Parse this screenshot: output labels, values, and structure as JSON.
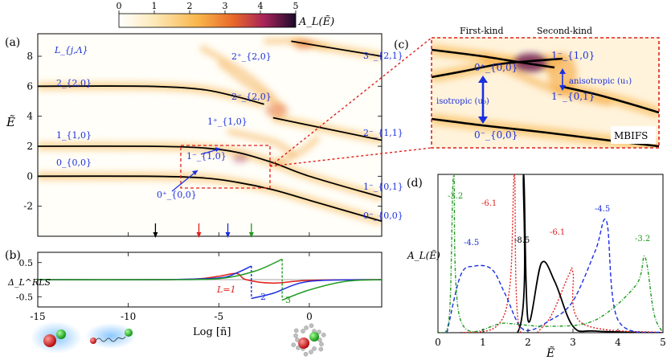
{
  "colorbar": {
    "ticks": [
      "0",
      "1",
      "2",
      "3",
      "4",
      "5"
    ],
    "label": "A_L(Ẽ)",
    "colors": [
      "#ffffff",
      "#fde9b8",
      "#f8b54a",
      "#e8672a",
      "#a8235a",
      "#1b0a2a"
    ]
  },
  "panel_a": {
    "tag": "(a)",
    "corner_label": "L_{j,Λ}",
    "ylabel": "Ẽ",
    "y_ticks": [
      "-2",
      "0",
      "2",
      "4",
      "6",
      "8"
    ],
    "state_labels": [
      "2_{2,0}",
      "1_{1,0}",
      "0_{0,0}",
      "2⁺_{2,0}",
      "2⁻_{2,0}",
      "1⁺_{1,0}",
      "1⁻_{1,0}",
      "0⁺_{0,0}",
      "3⁻_{2,1}",
      "2⁻_{1,1}",
      "1⁻_{0,1}",
      "0⁻_{0,0}"
    ],
    "arrow_colors": [
      "#000000",
      "#e0201b",
      "#1a2fe0",
      "#1f9a1f"
    ]
  },
  "panel_b": {
    "tag": "(b)",
    "ylabel": "Δ_L^RLS",
    "y_ticks": [
      "0.5",
      "-0.5"
    ],
    "x_ticks": [
      "-15",
      "-10",
      "-5",
      "0"
    ],
    "xlabel": "Log [ñ]",
    "curve_labels": [
      "L=1",
      "2",
      "3"
    ]
  },
  "panel_c": {
    "tag": "(c)",
    "headers": [
      "First-kind",
      "Second-kind"
    ],
    "state_labels": [
      "0⁺_{0,0}",
      "0⁻_{0,0}",
      "1⁻_{1,0}",
      "1⁻_{0,1}"
    ],
    "annotations": [
      "isotropic (u₀)",
      "anisotropic (u₁)"
    ],
    "badge": "MBIFS"
  },
  "panel_d": {
    "tag": "(d)",
    "ylabel": "A_L(Ẽ)",
    "xlabel": "Ẽ",
    "x_ticks": [
      "0",
      "1",
      "2",
      "3",
      "4",
      "5"
    ],
    "curve_labels": [
      "-3.2",
      "-6.1",
      "-4.5",
      "-8.5",
      "-6.1",
      "-4.5",
      "-3.2"
    ]
  },
  "chart_data": [
    {
      "type": "heatmap",
      "name": "panel-a",
      "xlim": [
        -15,
        4
      ],
      "ylim": [
        -4,
        9.5
      ],
      "lines": [
        {
          "label": "0_{0,0}",
          "x": [
            -15,
            -9,
            -6,
            -4,
            -2,
            0,
            4
          ],
          "y": [
            0,
            0,
            -0.1,
            -0.4,
            -0.9,
            -1.6,
            -3.0
          ]
        },
        {
          "label": "1_{1,0}",
          "x": [
            -15,
            -9,
            -6,
            -4,
            -2,
            0,
            4
          ],
          "y": [
            2,
            2,
            1.9,
            1.6,
            0.9,
            0.0,
            -1.4
          ]
        },
        {
          "label": "2_{2,0}",
          "x": [
            -15,
            -9,
            -6,
            -4,
            -2.5
          ],
          "y": [
            6,
            6,
            5.8,
            5.3,
            4.8
          ]
        },
        {
          "label": "2⁻_{1,1}",
          "x": [
            -2,
            0,
            4
          ],
          "y": [
            3.9,
            3.4,
            2.4
          ]
        },
        {
          "label": "3⁻_{2,1}",
          "x": [
            -1,
            0,
            4
          ],
          "y": [
            9.0,
            8.8,
            8.0
          ]
        }
      ]
    },
    {
      "type": "line",
      "name": "panel-b",
      "xlim": [
        -15,
        4
      ],
      "ylim": [
        -0.8,
        0.8
      ],
      "series": [
        {
          "name": "L=1",
          "x": [
            -15,
            -8,
            -6,
            -5,
            -4,
            -3.5,
            -2,
            0,
            4
          ],
          "y": [
            0,
            0,
            0.03,
            0.1,
            0.18,
            0.0,
            -0.1,
            -0.02,
            0
          ]
        },
        {
          "name": "2",
          "x": [
            -15,
            -8,
            -5,
            -4,
            -3.2,
            -3.2,
            -2,
            0,
            4
          ],
          "y": [
            0,
            0,
            0.05,
            0.2,
            0.4,
            -0.55,
            -0.4,
            -0.05,
            0
          ]
        },
        {
          "name": "3",
          "x": [
            -15,
            -8,
            -5,
            -3,
            -1.5,
            -1.5,
            0,
            2,
            4
          ],
          "y": [
            0,
            0,
            0.03,
            0.25,
            0.6,
            -0.6,
            -0.3,
            -0.05,
            0
          ]
        }
      ]
    },
    {
      "type": "line",
      "name": "panel-d",
      "xlim": [
        0,
        5
      ],
      "ylim": [
        0,
        5
      ],
      "series": [
        {
          "name": "-8.5",
          "color": "#000000",
          "x": [
            0.5,
            1.8,
            1.9,
            2.0,
            2.3,
            2.6,
            3.0,
            3.5,
            5
          ],
          "y": [
            0,
            0.1,
            5,
            0.4,
            2.2,
            1.6,
            0.2,
            0.05,
            0
          ]
        },
        {
          "name": "-6.1",
          "color": "#e0201b",
          "x": [
            0.5,
            1.3,
            1.6,
            1.7,
            1.8,
            2.4,
            2.9,
            3.0,
            3.2,
            5
          ],
          "y": [
            0,
            0.2,
            1.5,
            5,
            0.2,
            0.3,
            1.8,
            1.9,
            0.3,
            0
          ]
        },
        {
          "name": "-4.5",
          "color": "#1a2fe0",
          "x": [
            0.2,
            0.5,
            0.8,
            1.2,
            1.5,
            1.9,
            2.5,
            3.0,
            3.5,
            3.75,
            4.0,
            5
          ],
          "y": [
            0,
            1.8,
            2.1,
            2.0,
            1.2,
            0.1,
            0.4,
            1.0,
            2.6,
            3.5,
            0.4,
            0
          ]
        },
        {
          "name": "-3.2",
          "color": "#1f9a1f",
          "x": [
            0,
            0.25,
            0.35,
            0.5,
            1.5,
            2.5,
            3.5,
            4.4,
            4.6,
            4.8,
            5
          ],
          "y": [
            0,
            0.5,
            5,
            0.4,
            0.3,
            0.2,
            0.4,
            1.5,
            2.4,
            0.6,
            0
          ]
        }
      ]
    }
  ]
}
